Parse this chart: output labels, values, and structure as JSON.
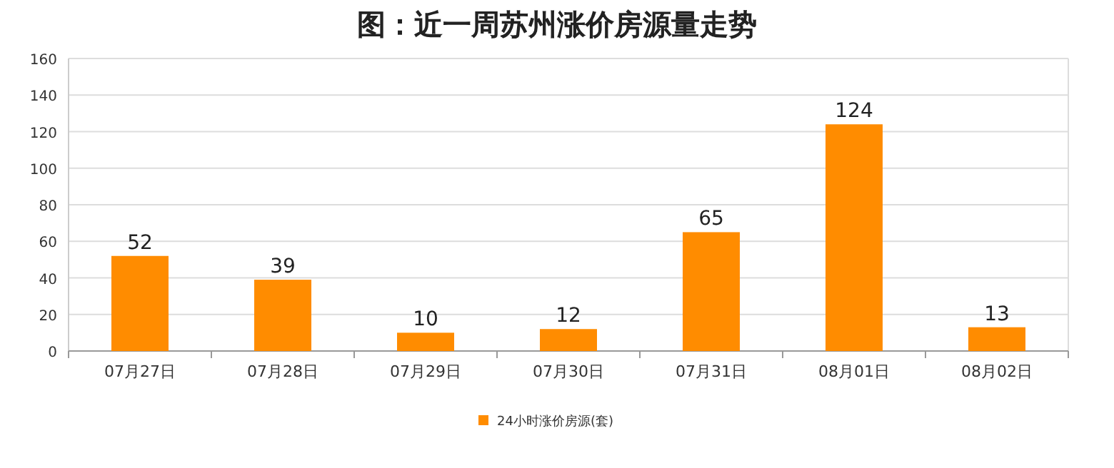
{
  "chart_data": {
    "type": "bar",
    "title": "图：近一周苏州涨价房源量走势",
    "categories": [
      "07月27日",
      "07月28日",
      "07月29日",
      "07月30日",
      "07月31日",
      "08月01日",
      "08月02日"
    ],
    "series": [
      {
        "name": "24小时涨价房源(套)",
        "color": "#ff8c00",
        "values": [
          52,
          39,
          10,
          12,
          65,
          124,
          13
        ]
      }
    ],
    "ylim": [
      0,
      160
    ],
    "yticks": [
      0,
      20,
      40,
      60,
      80,
      100,
      120,
      140,
      160
    ],
    "grid": "y",
    "legend": "bottom",
    "data_labels": true
  }
}
